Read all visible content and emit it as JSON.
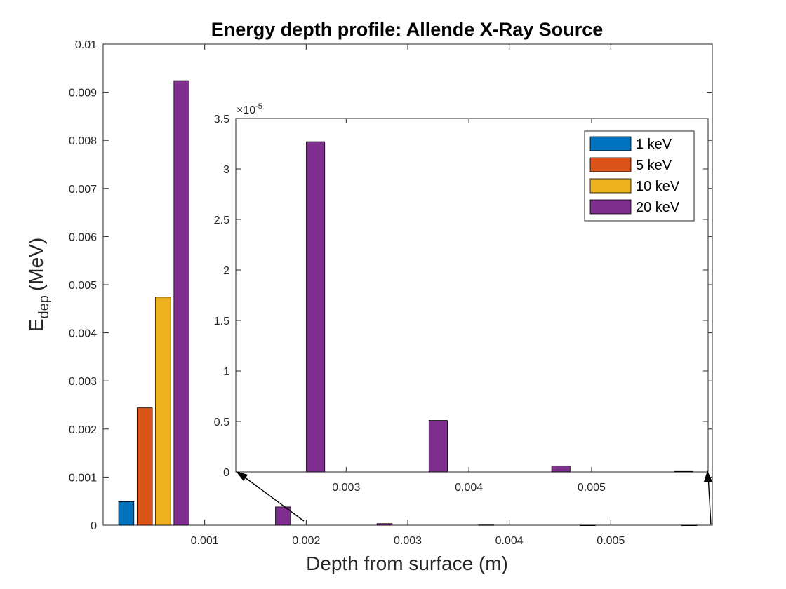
{
  "chart_data": [
    {
      "type": "bar",
      "title": "Energy depth profile: Allende X-Ray Source",
      "xlabel": "Depth from surface (m)",
      "ylabel_main": "E",
      "ylabel_sub": "dep",
      "ylabel_units": "(MeV)",
      "xlim": [
        0.0,
        0.006
      ],
      "ylim": [
        0,
        0.01
      ],
      "xticks": [
        0.001,
        0.002,
        0.003,
        0.004,
        0.005
      ],
      "xtick_labels": [
        "0.001",
        "0.002",
        "0.003",
        "0.004",
        "0.005"
      ],
      "yticks": [
        0,
        0.001,
        0.002,
        0.003,
        0.004,
        0.005,
        0.006,
        0.007,
        0.008,
        0.009,
        0.01
      ],
      "ytick_labels": [
        "0",
        "0.001",
        "0.002",
        "0.003",
        "0.004",
        "0.005",
        "0.006",
        "0.007",
        "0.008",
        "0.009",
        "0.01"
      ],
      "group_centers": [
        0.0005,
        0.0015,
        0.0025,
        0.0035,
        0.0045,
        0.0055
      ],
      "bar_width": 0.00015,
      "series": [
        {
          "name": "1 keV",
          "color": "#0072BD",
          "values": [
            0.00049,
            0,
            0,
            0,
            0,
            0
          ]
        },
        {
          "name": "5 keV",
          "color": "#D95319",
          "values": [
            0.00244,
            0,
            0,
            0,
            0,
            0
          ]
        },
        {
          "name": "10 keV",
          "color": "#EDB120",
          "values": [
            0.00474,
            0,
            0,
            0,
            0,
            0
          ]
        },
        {
          "name": "20 keV",
          "color": "#7E2F8E",
          "values": [
            0.00924,
            0.00038,
            3.27e-05,
            5.1e-06,
            6e-07,
            5e-08
          ]
        }
      ]
    },
    {
      "type": "bar",
      "role": "inset",
      "xlim": [
        0.0021,
        0.00595
      ],
      "ylim": [
        0,
        3.5
      ],
      "y_multiplier": "×10",
      "y_exponent": "-5",
      "xticks": [
        0.003,
        0.004,
        0.005
      ],
      "xtick_labels": [
        "0.003",
        "0.004",
        "0.005"
      ],
      "yticks": [
        0,
        0.5,
        1,
        1.5,
        2,
        2.5,
        3,
        3.5
      ],
      "ytick_labels": [
        "0",
        "0.5",
        "1",
        "1.5",
        "2",
        "2.5",
        "3",
        "3.5"
      ],
      "bars": [
        {
          "x": 0.00275,
          "value": 3.27,
          "color": "#7E2F8E"
        },
        {
          "x": 0.00375,
          "value": 0.51,
          "color": "#7E2F8E"
        },
        {
          "x": 0.00475,
          "value": 0.06,
          "color": "#7E2F8E"
        },
        {
          "x": 0.00575,
          "value": 0.005,
          "color": "#7E2F8E"
        }
      ],
      "bar_width": 0.00015,
      "legend_position": "top-right",
      "legend": [
        {
          "name": "1 keV",
          "color": "#0072BD"
        },
        {
          "name": "5 keV",
          "color": "#D95319"
        },
        {
          "name": "10 keV",
          "color": "#EDB120"
        },
        {
          "name": "20 keV",
          "color": "#7E2F8E"
        }
      ]
    }
  ]
}
